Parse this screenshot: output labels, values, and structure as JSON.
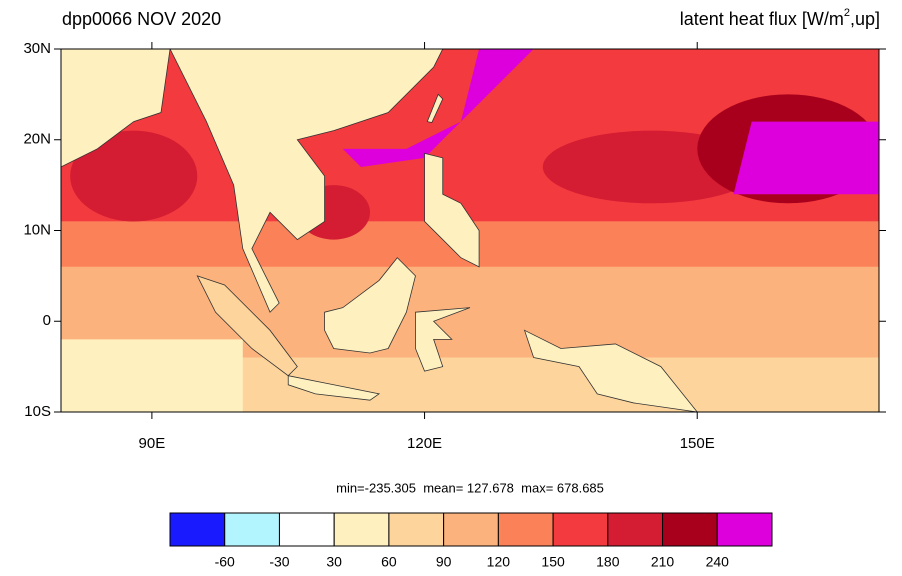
{
  "title_left": "dpp0066 NOV 2020",
  "title_right": {
    "text": "latent heat flux [W/m",
    "sup": "2",
    "tail": ",up]"
  },
  "map": {
    "lonlim": [
      80,
      170
    ],
    "latlim": [
      -10,
      30
    ],
    "lon_ticks": [
      {
        "value": 90,
        "label": "90E"
      },
      {
        "value": 120,
        "label": "120E"
      },
      {
        "value": 150,
        "label": "150E"
      }
    ],
    "lat_ticks": [
      {
        "value": 30,
        "label": "30N"
      },
      {
        "value": 20,
        "label": "20N"
      },
      {
        "value": 10,
        "label": "10N"
      },
      0,
      {
        "value": -10,
        "label": "10S"
      }
    ]
  },
  "stats": "min=-235.305  mean= 127.678  max= 678.685",
  "colorbar": {
    "levels": [
      -60,
      -30,
      30,
      60,
      90,
      120,
      150,
      180,
      210,
      240
    ],
    "colors": [
      "#1a1aff",
      "#b3f5ff",
      "#ffffff",
      "#fff0c0",
      "#fdd59c",
      "#fcb27c",
      "#fb8158",
      "#f33a3e",
      "#d41c33",
      "#a8001c",
      "#dd00dd"
    ]
  }
}
